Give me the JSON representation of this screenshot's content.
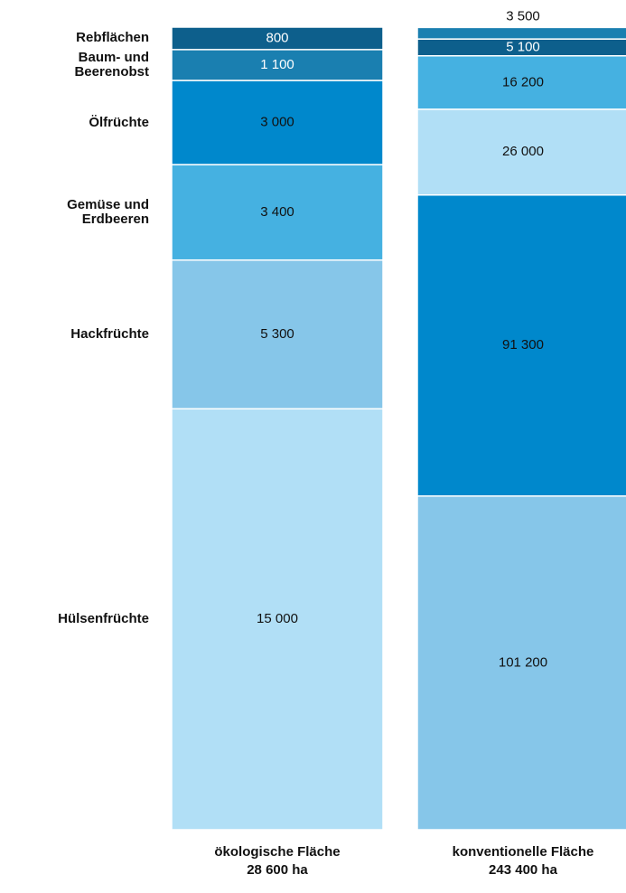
{
  "chart_data": {
    "type": "stacked_percent_bar",
    "categories": [
      "ökologische Fläche",
      "konventionelle Fläche"
    ],
    "totals": [
      28600,
      243400
    ],
    "total_labels": [
      "28 600 ha",
      "243 400 ha"
    ],
    "series": [
      {
        "name": "Rebflächen",
        "color": "#0d5f8c",
        "values": [
          800,
          5100
        ],
        "value_labels": [
          "800",
          "5 100"
        ]
      },
      {
        "name": "Baum- und Beerenobst",
        "color": "#1a7fb0",
        "values": [
          1100,
          3500
        ],
        "value_labels": [
          "1 100",
          "3 500"
        ]
      },
      {
        "name": "Ölfrüchte",
        "color": "#0088cc",
        "values": [
          3000,
          91300
        ],
        "value_labels": [
          "3 000",
          "91 300"
        ]
      },
      {
        "name": "Gemüse und Erdbeeren",
        "color": "#45b1e1",
        "values": [
          3400,
          16200
        ],
        "value_labels": [
          "3 400",
          "16 200"
        ]
      },
      {
        "name": "Hackfrüchte",
        "color": "#86c6e9",
        "values": [
          5300,
          101200
        ],
        "value_labels": [
          "5 300",
          "101 200"
        ]
      },
      {
        "name": "Hülsenfrüchte",
        "color": "#b1dff6",
        "values": [
          15000,
          26000
        ],
        "value_labels": [
          "15 000",
          "26 000"
        ]
      }
    ],
    "stack_order": [
      [
        5,
        4,
        3,
        2,
        1,
        0
      ],
      [
        4,
        2,
        5,
        3,
        0,
        1
      ]
    ]
  }
}
